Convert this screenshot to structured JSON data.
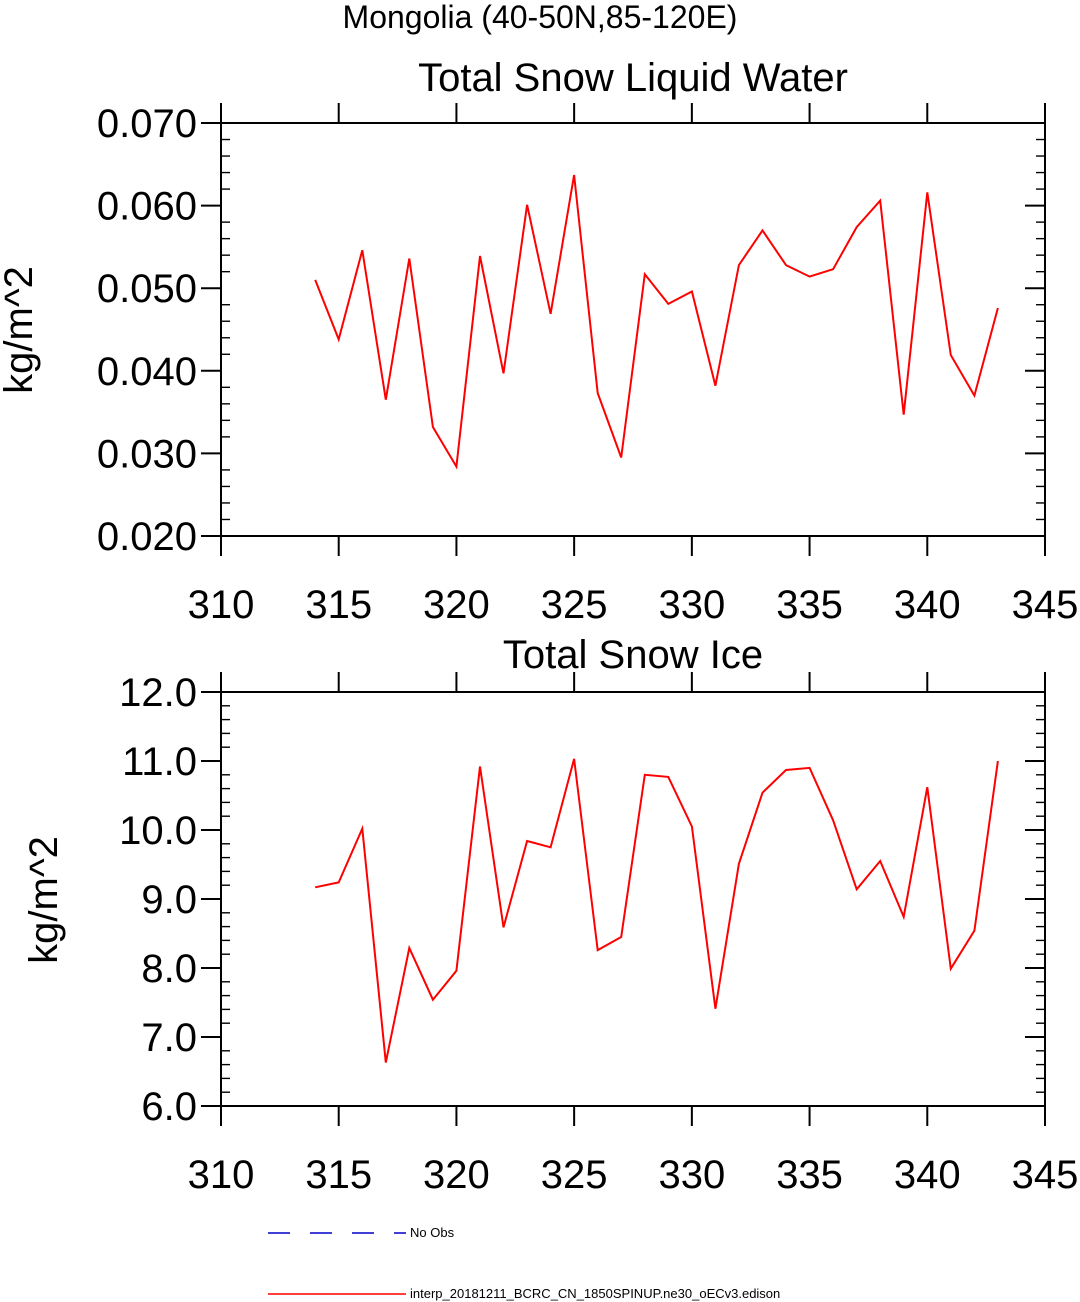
{
  "figure_title": "Mongolia (40-50N,85-120E)",
  "legend": [
    {
      "label": "No Obs",
      "color": "#0000cc",
      "style": "dashed"
    },
    {
      "label": "interp_20181211_BCRC_CN_1850SPINUP.ne30_oECv3.edison",
      "color": "#ff0000",
      "style": "solid"
    }
  ],
  "chart_data": [
    {
      "type": "line",
      "title": "Total Snow Liquid Water",
      "xlabel": "",
      "ylabel": "kg/m^2",
      "xlim": [
        310,
        345
      ],
      "ylim": [
        0.02,
        0.07
      ],
      "x_ticks": [
        310,
        315,
        320,
        325,
        330,
        335,
        340,
        345
      ],
      "x_tick_labels": [
        "310",
        "315",
        "320",
        "325",
        "330",
        "335",
        "340",
        "345"
      ],
      "y_ticks": [
        0.02,
        0.03,
        0.04,
        0.05,
        0.06,
        0.07
      ],
      "y_tick_labels": [
        "0.020",
        "0.030",
        "0.040",
        "0.050",
        "0.060",
        "0.070"
      ],
      "y_minor_step": 0.002,
      "x": [
        314,
        315,
        316,
        317,
        318,
        319,
        320,
        321,
        322,
        323,
        324,
        325,
        326,
        327,
        328,
        329,
        330,
        331,
        332,
        333,
        334,
        335,
        336,
        337,
        338,
        339,
        340,
        341,
        342,
        343
      ],
      "series": [
        {
          "color": "#ff0000",
          "values": [
            0.051,
            0.0438,
            0.0546,
            0.0365,
            0.0536,
            0.0332,
            0.0284,
            0.0539,
            0.0397,
            0.0601,
            0.0469,
            0.0637,
            0.0373,
            0.0295,
            0.0517,
            0.0481,
            0.0496,
            0.0382,
            0.0528,
            0.057,
            0.0528,
            0.0514,
            0.0523,
            0.0574,
            0.0606,
            0.0347,
            0.0616,
            0.0419,
            0.037,
            0.0476
          ]
        }
      ]
    },
    {
      "type": "line",
      "title": "Total Snow Ice",
      "xlabel": "",
      "ylabel": "kg/m^2",
      "xlim": [
        310,
        345
      ],
      "ylim": [
        6.0,
        12.0
      ],
      "x_ticks": [
        310,
        315,
        320,
        325,
        330,
        335,
        340,
        345
      ],
      "x_tick_labels": [
        "310",
        "315",
        "320",
        "325",
        "330",
        "335",
        "340",
        "345"
      ],
      "y_ticks": [
        6.0,
        7.0,
        8.0,
        9.0,
        10.0,
        11.0,
        12.0
      ],
      "y_tick_labels": [
        "6.0",
        "7.0",
        "8.0",
        "9.0",
        "10.0",
        "11.0",
        "12.0"
      ],
      "y_minor_step": 0.2,
      "x": [
        314,
        315,
        316,
        317,
        318,
        319,
        320,
        321,
        322,
        323,
        324,
        325,
        326,
        327,
        328,
        329,
        330,
        331,
        332,
        333,
        334,
        335,
        336,
        337,
        338,
        339,
        340,
        341,
        342,
        343
      ],
      "series": [
        {
          "color": "#ff0000",
          "values": [
            9.17,
            9.24,
            10.02,
            6.63,
            8.29,
            7.54,
            7.96,
            10.92,
            8.59,
            9.84,
            9.75,
            11.03,
            8.26,
            8.45,
            10.8,
            10.77,
            10.05,
            7.41,
            9.51,
            10.54,
            10.87,
            10.9,
            10.14,
            9.14,
            9.55,
            8.74,
            10.62,
            7.99,
            8.54,
            11.0
          ]
        }
      ]
    }
  ]
}
